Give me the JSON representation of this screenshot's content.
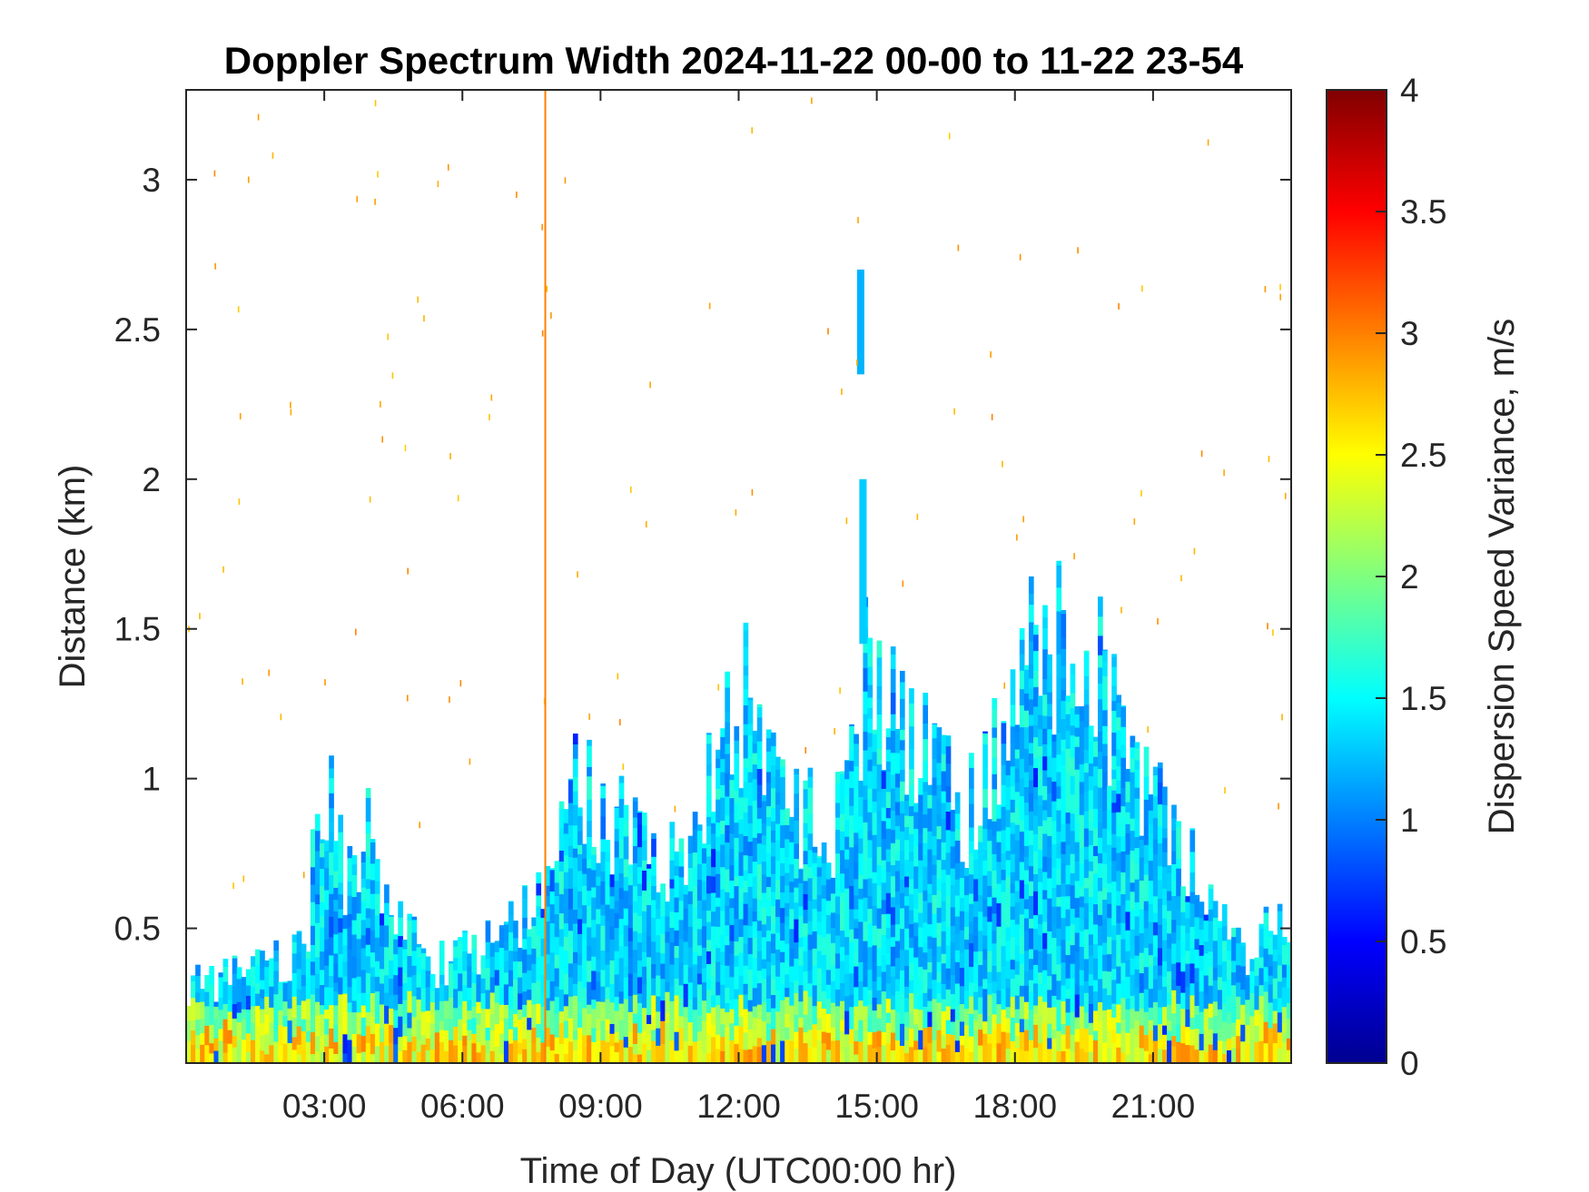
{
  "chart_data": {
    "type": "heatmap",
    "title": "Doppler Spectrum Width 2024-11-22 00-00 to 11-22 23-54",
    "xlabel": "Time of Day (UTC00:00 hr)",
    "ylabel": "Distance (km)",
    "colorbar_label": "Dispersion Speed Variance, m/s",
    "colormap": "jet",
    "xlim_hours": [
      0,
      24
    ],
    "ylim_km": [
      0.05,
      3.3
    ],
    "clim": [
      0,
      4
    ],
    "x_ticks": [
      {
        "value": 3,
        "label": "03:00"
      },
      {
        "value": 6,
        "label": "06:00"
      },
      {
        "value": 9,
        "label": "09:00"
      },
      {
        "value": 12,
        "label": "12:00"
      },
      {
        "value": 15,
        "label": "15:00"
      },
      {
        "value": 18,
        "label": "18:00"
      },
      {
        "value": 21,
        "label": "21:00"
      }
    ],
    "y_ticks": [
      {
        "value": 0.5,
        "label": "0.5"
      },
      {
        "value": 1,
        "label": "1"
      },
      {
        "value": 1.5,
        "label": "1.5"
      },
      {
        "value": 2,
        "label": "2"
      },
      {
        "value": 2.5,
        "label": "2.5"
      },
      {
        "value": 3,
        "label": "3"
      }
    ],
    "colorbar_ticks": [
      {
        "value": 0,
        "label": "0"
      },
      {
        "value": 0.5,
        "label": "0.5"
      },
      {
        "value": 1,
        "label": "1"
      },
      {
        "value": 1.5,
        "label": "1.5"
      },
      {
        "value": 2,
        "label": "2"
      },
      {
        "value": 2.5,
        "label": "2.5"
      },
      {
        "value": 3,
        "label": "3"
      },
      {
        "value": 3.5,
        "label": "3.5"
      },
      {
        "value": 4,
        "label": "4"
      }
    ],
    "signal_top_profile_km": [
      {
        "hour": 0.0,
        "top": 0.32
      },
      {
        "hour": 1.5,
        "top": 0.36
      },
      {
        "hour": 2.6,
        "top": 0.45
      },
      {
        "hour": 3.0,
        "top": 1.1
      },
      {
        "hour": 3.4,
        "top": 0.7
      },
      {
        "hour": 4.0,
        "top": 0.85
      },
      {
        "hour": 4.6,
        "top": 0.5
      },
      {
        "hour": 5.5,
        "top": 0.38
      },
      {
        "hour": 7.0,
        "top": 0.5
      },
      {
        "hour": 7.8,
        "top": 0.7
      },
      {
        "hour": 8.5,
        "top": 1.05
      },
      {
        "hour": 9.2,
        "top": 0.9
      },
      {
        "hour": 10.5,
        "top": 0.7
      },
      {
        "hour": 12.2,
        "top": 1.3
      },
      {
        "hour": 13.0,
        "top": 0.95
      },
      {
        "hour": 14.0,
        "top": 0.8
      },
      {
        "hour": 14.7,
        "top": 1.35
      },
      {
        "hour": 15.5,
        "top": 1.2
      },
      {
        "hour": 17.0,
        "top": 0.9
      },
      {
        "hour": 18.5,
        "top": 1.5
      },
      {
        "hour": 19.7,
        "top": 1.45
      },
      {
        "hour": 20.5,
        "top": 1.0
      },
      {
        "hour": 21.5,
        "top": 0.85
      },
      {
        "hour": 22.3,
        "top": 0.55
      },
      {
        "hour": 23.0,
        "top": 0.4
      },
      {
        "hour": 24.0,
        "top": 0.6
      }
    ],
    "elevated_echoes": [
      {
        "hour": 14.7,
        "bottom_km": 1.45,
        "top_km": 2.0,
        "value": 1.3
      },
      {
        "hour": 14.65,
        "bottom_km": 2.35,
        "top_km": 2.7,
        "value": 1.2
      }
    ],
    "vertical_artifact_hour": 7.8,
    "vertical_artifact_value": 3.0
  }
}
